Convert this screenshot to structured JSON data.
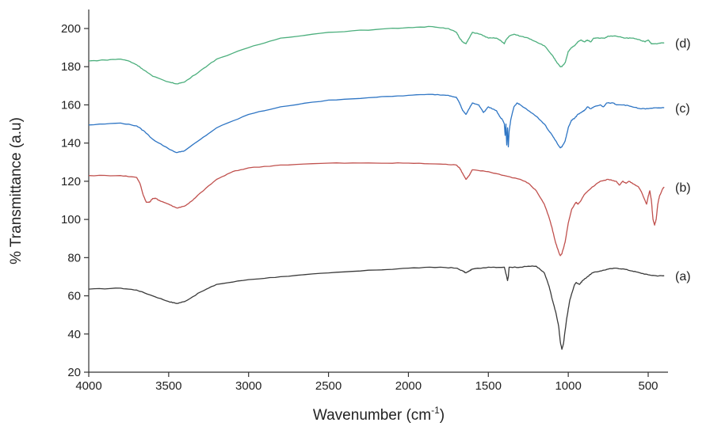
{
  "chart_data": {
    "type": "line",
    "title": "",
    "xlabel": "Wavenumber (cm",
    "xlabel_sup": "-1",
    "xlabel_close": ")",
    "ylabel": "% Transmittance (a.u)",
    "xlim": [
      4000,
      400
    ],
    "ylim": [
      20,
      210
    ],
    "x_reversed": true,
    "grid": false,
    "x_ticks": [
      4000,
      3500,
      3000,
      2500,
      2000,
      1500,
      1000,
      500
    ],
    "x_tick_labels": [
      "4000",
      "3500",
      "3000",
      "2500",
      "2000",
      "1500",
      "1000",
      "500"
    ],
    "y_ticks": [
      20,
      40,
      60,
      80,
      100,
      120,
      140,
      160,
      180,
      200
    ],
    "y_tick_labels": [
      "20",
      "40",
      "60",
      "80",
      "100",
      "120",
      "140",
      "160",
      "180",
      "200"
    ],
    "series": [
      {
        "label": "(a)",
        "color": "#3a3a3a",
        "points": [
          [
            4000,
            63.5
          ],
          [
            3800,
            64
          ],
          [
            3700,
            63
          ],
          [
            3600,
            60
          ],
          [
            3500,
            57
          ],
          [
            3450,
            56
          ],
          [
            3400,
            57
          ],
          [
            3300,
            62
          ],
          [
            3200,
            66
          ],
          [
            3000,
            68.5
          ],
          [
            2800,
            70
          ],
          [
            2500,
            72
          ],
          [
            2200,
            73.5
          ],
          [
            2000,
            74.5
          ],
          [
            1800,
            75
          ],
          [
            1700,
            74.5
          ],
          [
            1660,
            73
          ],
          [
            1640,
            72
          ],
          [
            1620,
            73
          ],
          [
            1600,
            74
          ],
          [
            1500,
            75
          ],
          [
            1400,
            75
          ],
          [
            1385,
            70
          ],
          [
            1380,
            68
          ],
          [
            1375,
            70
          ],
          [
            1370,
            75
          ],
          [
            1300,
            75
          ],
          [
            1250,
            75.5
          ],
          [
            1200,
            75.5
          ],
          [
            1150,
            72
          ],
          [
            1120,
            65
          ],
          [
            1100,
            58
          ],
          [
            1080,
            52
          ],
          [
            1060,
            44
          ],
          [
            1050,
            36
          ],
          [
            1040,
            32
          ],
          [
            1030,
            35
          ],
          [
            1010,
            48
          ],
          [
            990,
            58
          ],
          [
            960,
            66
          ],
          [
            950,
            67
          ],
          [
            930,
            66
          ],
          [
            910,
            68
          ],
          [
            880,
            70
          ],
          [
            850,
            72
          ],
          [
            800,
            73
          ],
          [
            750,
            74
          ],
          [
            700,
            74.5
          ],
          [
            650,
            74
          ],
          [
            600,
            73
          ],
          [
            550,
            72
          ],
          [
            500,
            71
          ],
          [
            450,
            70.5
          ],
          [
            400,
            70.5
          ]
        ]
      },
      {
        "label": "(b)",
        "color": "#c0504d",
        "points": [
          [
            4000,
            123
          ],
          [
            3800,
            123
          ],
          [
            3700,
            122
          ],
          [
            3680,
            119
          ],
          [
            3660,
            113
          ],
          [
            3640,
            109
          ],
          [
            3620,
            109
          ],
          [
            3600,
            111
          ],
          [
            3580,
            111
          ],
          [
            3560,
            110
          ],
          [
            3500,
            108
          ],
          [
            3450,
            106
          ],
          [
            3400,
            107
          ],
          [
            3350,
            110
          ],
          [
            3300,
            114
          ],
          [
            3200,
            121
          ],
          [
            3100,
            125
          ],
          [
            3000,
            127
          ],
          [
            2800,
            128.5
          ],
          [
            2500,
            129.5
          ],
          [
            2200,
            129.5
          ],
          [
            2000,
            129.5
          ],
          [
            1800,
            129
          ],
          [
            1700,
            128.5
          ],
          [
            1680,
            127
          ],
          [
            1660,
            124
          ],
          [
            1640,
            121
          ],
          [
            1620,
            123
          ],
          [
            1600,
            126
          ],
          [
            1500,
            125
          ],
          [
            1400,
            123
          ],
          [
            1300,
            121
          ],
          [
            1250,
            119
          ],
          [
            1200,
            115
          ],
          [
            1150,
            108
          ],
          [
            1120,
            101
          ],
          [
            1100,
            95
          ],
          [
            1080,
            88
          ],
          [
            1060,
            83
          ],
          [
            1050,
            81
          ],
          [
            1040,
            82
          ],
          [
            1020,
            88
          ],
          [
            1000,
            98
          ],
          [
            980,
            105
          ],
          [
            960,
            108
          ],
          [
            950,
            109
          ],
          [
            940,
            108
          ],
          [
            920,
            110
          ],
          [
            900,
            113
          ],
          [
            850,
            117
          ],
          [
            800,
            120
          ],
          [
            750,
            121
          ],
          [
            700,
            120
          ],
          [
            680,
            118
          ],
          [
            660,
            120
          ],
          [
            640,
            119
          ],
          [
            620,
            120
          ],
          [
            600,
            119
          ],
          [
            560,
            117
          ],
          [
            540,
            114
          ],
          [
            520,
            110
          ],
          [
            510,
            108
          ],
          [
            500,
            112
          ],
          [
            490,
            115
          ],
          [
            480,
            110
          ],
          [
            470,
            100
          ],
          [
            460,
            97
          ],
          [
            450,
            100
          ],
          [
            440,
            108
          ],
          [
            430,
            112
          ],
          [
            410,
            116
          ],
          [
            400,
            117
          ]
        ]
      },
      {
        "label": "(c)",
        "color": "#2e75c4",
        "points": [
          [
            4000,
            149.5
          ],
          [
            3800,
            150.5
          ],
          [
            3700,
            149
          ],
          [
            3650,
            146
          ],
          [
            3600,
            142
          ],
          [
            3500,
            137
          ],
          [
            3450,
            135
          ],
          [
            3400,
            136
          ],
          [
            3300,
            142
          ],
          [
            3200,
            148
          ],
          [
            3000,
            155
          ],
          [
            2800,
            159
          ],
          [
            2500,
            162.5
          ],
          [
            2200,
            164
          ],
          [
            2000,
            165
          ],
          [
            1850,
            165.5
          ],
          [
            1750,
            165
          ],
          [
            1700,
            164
          ],
          [
            1680,
            161
          ],
          [
            1660,
            157
          ],
          [
            1640,
            155
          ],
          [
            1620,
            158
          ],
          [
            1600,
            161
          ],
          [
            1560,
            160
          ],
          [
            1530,
            156
          ],
          [
            1500,
            159
          ],
          [
            1450,
            157
          ],
          [
            1430,
            154
          ],
          [
            1410,
            152
          ],
          [
            1400,
            150
          ],
          [
            1395,
            144
          ],
          [
            1390,
            150
          ],
          [
            1385,
            139
          ],
          [
            1380,
            148
          ],
          [
            1375,
            138
          ],
          [
            1370,
            146
          ],
          [
            1360,
            152
          ],
          [
            1340,
            159
          ],
          [
            1320,
            161
          ],
          [
            1300,
            160
          ],
          [
            1250,
            157
          ],
          [
            1200,
            154
          ],
          [
            1150,
            150
          ],
          [
            1100,
            144
          ],
          [
            1070,
            140
          ],
          [
            1050,
            137.5
          ],
          [
            1040,
            138
          ],
          [
            1020,
            141
          ],
          [
            1000,
            148
          ],
          [
            980,
            152
          ],
          [
            960,
            153
          ],
          [
            940,
            155
          ],
          [
            920,
            156
          ],
          [
            900,
            157
          ],
          [
            880,
            159
          ],
          [
            860,
            158
          ],
          [
            840,
            159
          ],
          [
            800,
            160
          ],
          [
            780,
            159
          ],
          [
            760,
            161
          ],
          [
            720,
            161
          ],
          [
            700,
            160
          ],
          [
            650,
            160
          ],
          [
            600,
            159
          ],
          [
            550,
            158
          ],
          [
            500,
            158
          ],
          [
            450,
            158.5
          ],
          [
            400,
            158.5
          ]
        ]
      },
      {
        "label": "(d)",
        "color": "#4caf7d",
        "points": [
          [
            4000,
            183
          ],
          [
            3900,
            183.5
          ],
          [
            3800,
            184
          ],
          [
            3750,
            183
          ],
          [
            3700,
            181
          ],
          [
            3650,
            178
          ],
          [
            3600,
            175
          ],
          [
            3500,
            172
          ],
          [
            3450,
            171
          ],
          [
            3400,
            172
          ],
          [
            3300,
            178
          ],
          [
            3200,
            184
          ],
          [
            3000,
            190
          ],
          [
            2800,
            195
          ],
          [
            2500,
            198
          ],
          [
            2200,
            199.5
          ],
          [
            2000,
            200.5
          ],
          [
            1850,
            201
          ],
          [
            1750,
            200
          ],
          [
            1700,
            198
          ],
          [
            1680,
            195
          ],
          [
            1660,
            193
          ],
          [
            1640,
            192
          ],
          [
            1620,
            195
          ],
          [
            1600,
            198
          ],
          [
            1550,
            197
          ],
          [
            1500,
            195
          ],
          [
            1450,
            195
          ],
          [
            1420,
            193.5
          ],
          [
            1400,
            192
          ],
          [
            1390,
            194
          ],
          [
            1370,
            196
          ],
          [
            1340,
            197
          ],
          [
            1300,
            196
          ],
          [
            1250,
            195
          ],
          [
            1200,
            193
          ],
          [
            1150,
            191
          ],
          [
            1100,
            186
          ],
          [
            1070,
            182
          ],
          [
            1050,
            180
          ],
          [
            1040,
            180
          ],
          [
            1020,
            182
          ],
          [
            1000,
            188
          ],
          [
            980,
            190
          ],
          [
            960,
            191
          ],
          [
            940,
            193
          ],
          [
            920,
            194
          ],
          [
            900,
            193
          ],
          [
            880,
            194
          ],
          [
            860,
            193
          ],
          [
            840,
            195
          ],
          [
            800,
            195
          ],
          [
            770,
            195
          ],
          [
            750,
            196
          ],
          [
            700,
            196
          ],
          [
            650,
            195
          ],
          [
            600,
            195
          ],
          [
            550,
            194
          ],
          [
            520,
            193
          ],
          [
            500,
            194
          ],
          [
            480,
            192
          ],
          [
            450,
            192
          ],
          [
            420,
            192.5
          ],
          [
            400,
            192.5
          ]
        ]
      }
    ]
  }
}
